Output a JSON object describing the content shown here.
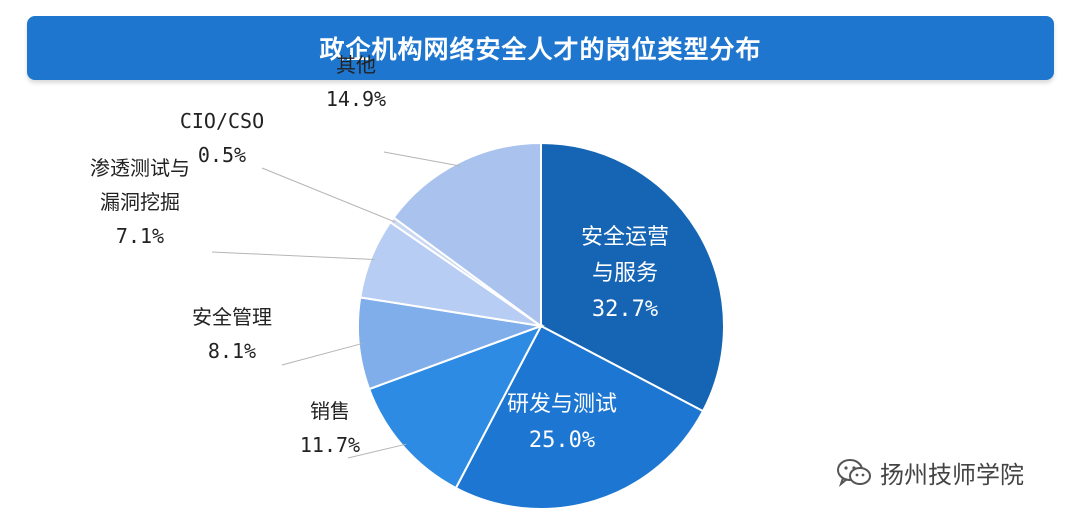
{
  "title": "政企机构网络安全人才的岗位类型分布",
  "chart_data": {
    "type": "pie",
    "title": "政企机构网络安全人才的岗位类型分布",
    "slices": [
      {
        "label": [
          "安全运营",
          "与服务"
        ],
        "value": 32.7,
        "value_label": "32.7%",
        "color": "#1565b4",
        "label_inside": true
      },
      {
        "label": [
          "研发与测试"
        ],
        "value": 25.0,
        "value_label": "25.0%",
        "color": "#1d76d2",
        "label_inside": true
      },
      {
        "label": [
          "销售"
        ],
        "value": 11.7,
        "value_label": "11.7%",
        "color": "#2d8be3",
        "label_inside": false
      },
      {
        "label": [
          "安全管理"
        ],
        "value": 8.1,
        "value_label": "8.1%",
        "color": "#7faeea",
        "label_inside": false
      },
      {
        "label": [
          "渗透测试与",
          "漏洞挖掘"
        ],
        "value": 7.1,
        "value_label": "7.1%",
        "color": "#b7cdf3",
        "label_inside": false
      },
      {
        "label": [
          "CIO/CSO"
        ],
        "value": 0.5,
        "value_label": "0.5%",
        "color": "#c9d8f2",
        "label_inside": false
      },
      {
        "label": [
          "其他"
        ],
        "value": 14.9,
        "value_label": "14.9%",
        "color": "#a9c2ee",
        "label_inside": false
      }
    ]
  },
  "watermark": {
    "icon": "wechat-icon",
    "text": "扬州技师学院"
  }
}
